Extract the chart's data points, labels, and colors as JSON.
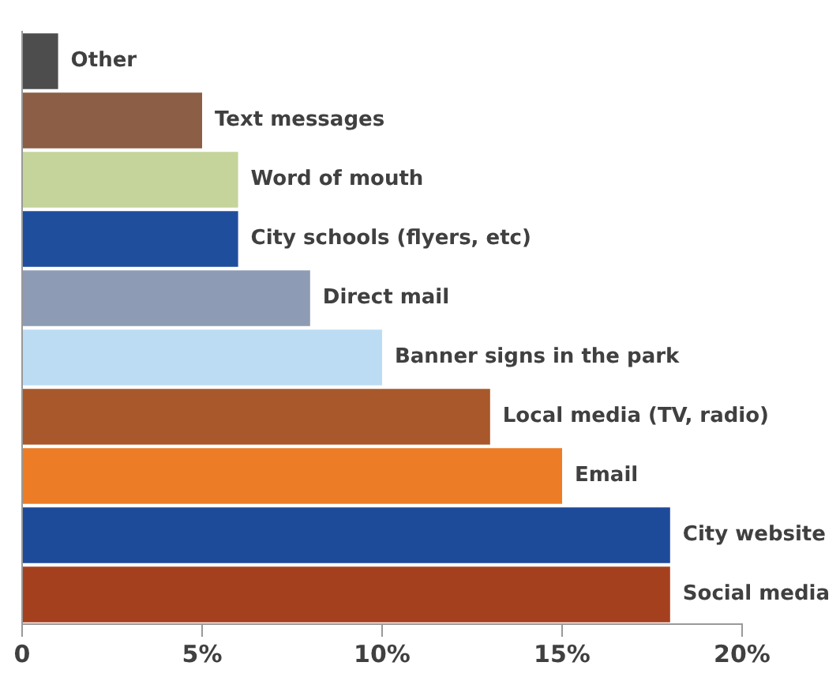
{
  "chart_data": {
    "type": "bar",
    "orientation": "horizontal",
    "categories": [
      "Other",
      "Text messages",
      "Word of mouth",
      "City schools (flyers, etc)",
      "Direct mail",
      "Banner signs in the park",
      "Local media (TV, radio)",
      "Email",
      "City website",
      "Social media"
    ],
    "values": [
      1,
      5,
      6,
      6,
      8,
      10,
      13,
      15,
      18,
      18
    ],
    "colors": [
      "#4d4d4d",
      "#8b5e45",
      "#c5d49a",
      "#1f4e9c",
      "#8e9bb5",
      "#bcdcf4",
      "#a8582a",
      "#ec7d26",
      "#1e4a9a",
      "#a5401f"
    ],
    "xlim": [
      0,
      20
    ],
    "xticks": [
      0,
      {
        "value": 5,
        "label": "5%"
      },
      {
        "value": 10,
        "label": "10%"
      },
      {
        "value": 15,
        "label": "15%"
      },
      {
        "value": 20,
        "label": "20%"
      }
    ],
    "grid": false,
    "legend": false
  }
}
